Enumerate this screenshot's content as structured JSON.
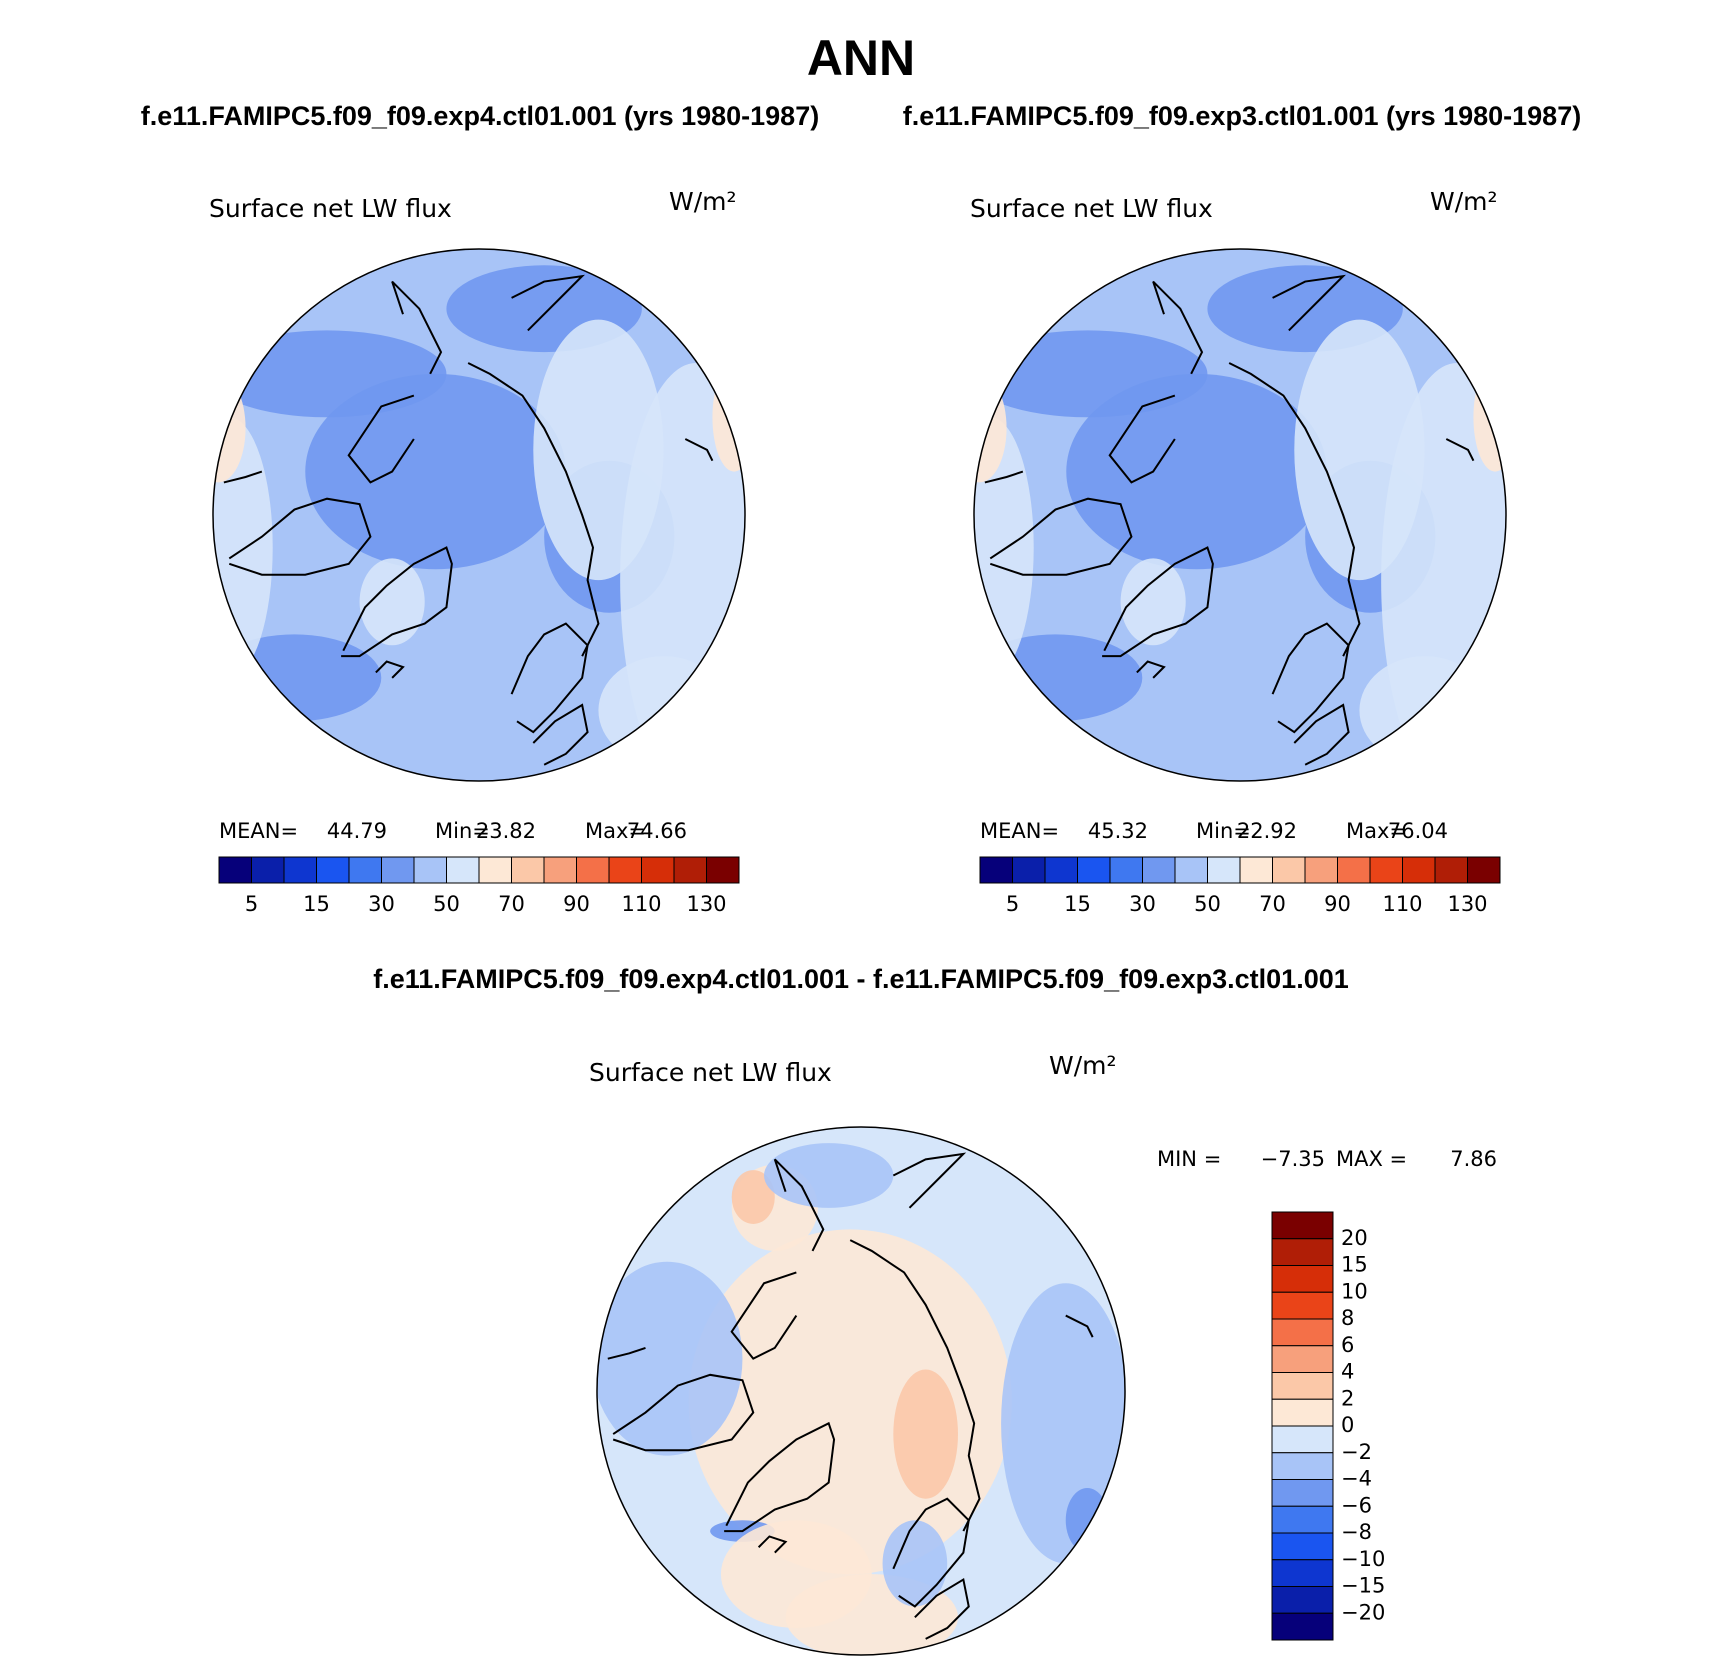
{
  "title": "ANN",
  "subtitles": [
    "f.e11.FAMIPC5.f09_f09.exp4.ctl01.001 (yrs 1980-1987)",
    "f.e11.FAMIPC5.f09_f09.exp3.ctl01.001 (yrs 1980-1987)"
  ],
  "panels": [
    {
      "title": "Surface net LW flux",
      "units": "W/m²",
      "stats": [
        {
          "label": "MEAN=",
          "value": 44.79
        },
        {
          "label": "Min=",
          "value": 23.82
        },
        {
          "label": "Max=",
          "value": 74.66
        }
      ],
      "colorbar": {
        "colors": [
          "#06007a",
          "#0a1faa",
          "#0e36d0",
          "#1a55f0",
          "#3f78f0",
          "#7098f0",
          "#a8c4f7",
          "#d6e6fa",
          "#fde8d6",
          "#fbc8a8",
          "#f7a07c",
          "#f47048",
          "#ea4418",
          "#d62e08",
          "#b01e06",
          "#7a0000"
        ],
        "labels": [
          5,
          15,
          30,
          50,
          70,
          90,
          110,
          130
        ]
      }
    },
    {
      "title": "Surface net LW flux",
      "units": "W/m²",
      "stats": [
        {
          "label": "MEAN=",
          "value": 45.32
        },
        {
          "label": "Min=",
          "value": 22.92
        },
        {
          "label": "Max=",
          "value": 76.04
        }
      ],
      "colorbar": {
        "colors": [
          "#06007a",
          "#0a1faa",
          "#0e36d0",
          "#1a55f0",
          "#3f78f0",
          "#7098f0",
          "#a8c4f7",
          "#d6e6fa",
          "#fde8d6",
          "#fbc8a8",
          "#f7a07c",
          "#f47048",
          "#ea4418",
          "#d62e08",
          "#b01e06",
          "#7a0000"
        ],
        "labels": [
          5,
          15,
          30,
          50,
          70,
          90,
          110,
          130
        ]
      }
    }
  ],
  "difference": {
    "title": "f.e11.FAMIPC5.f09_f09.exp4.ctl01.001 - f.e11.FAMIPC5.f09_f09.exp3.ctl01.001",
    "panel": {
      "title": "Surface net LW flux",
      "units": "W/m²",
      "stats": [
        {
          "label": "MIN =",
          "value": "−7.35"
        },
        {
          "label": "MAX =",
          "value": "7.86"
        }
      ],
      "colorbar": {
        "colors": [
          "#7a0000",
          "#b01e06",
          "#d62e08",
          "#ea4418",
          "#f47048",
          "#f7a07c",
          "#fbc8a8",
          "#fde8d6",
          "#d6e6fa",
          "#a8c4f7",
          "#7098f0",
          "#3f78f0",
          "#1a55f0",
          "#0e36d0",
          "#0a1faa",
          "#06007a"
        ],
        "labels": [
          "20",
          "15",
          "10",
          "8",
          "6",
          "4",
          "2",
          "0",
          "−2",
          "−4",
          "−6",
          "−8",
          "−10",
          "−15",
          "−20"
        ]
      }
    }
  }
}
